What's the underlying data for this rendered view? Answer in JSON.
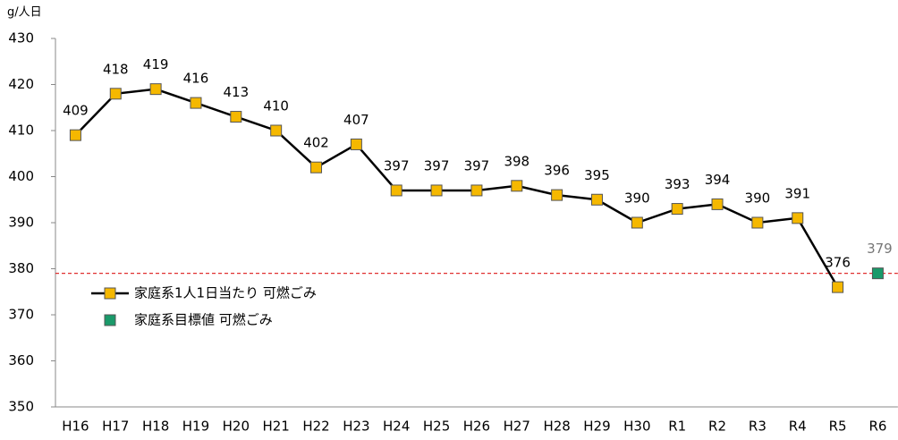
{
  "chart_data": {
    "type": "line",
    "y_label": "g/人日",
    "categories": [
      "H16",
      "H17",
      "H18",
      "H19",
      "H20",
      "H21",
      "H22",
      "H23",
      "H24",
      "H25",
      "H26",
      "H27",
      "H28",
      "H29",
      "H30",
      "R1",
      "R2",
      "R3",
      "R4",
      "R5",
      "R6"
    ],
    "series": [
      {
        "name": "家庭系1人1日当たり 可燃ごみ",
        "color": "#f5b800",
        "line_color": "#000000",
        "values": [
          409,
          418,
          419,
          416,
          413,
          410,
          402,
          407,
          397,
          397,
          397,
          398,
          396,
          395,
          390,
          393,
          394,
          390,
          391,
          376,
          null
        ]
      },
      {
        "name": "家庭系目標値 可燃ごみ",
        "color": "#1a9a6a",
        "line_color": null,
        "values": [
          null,
          null,
          null,
          null,
          null,
          null,
          null,
          null,
          null,
          null,
          null,
          null,
          null,
          null,
          null,
          null,
          null,
          null,
          null,
          null,
          379
        ]
      }
    ],
    "reference_line": {
      "value": 379,
      "color": "#e03030"
    },
    "ylim": [
      350,
      430
    ],
    "yticks": [
      350,
      360,
      370,
      380,
      390,
      400,
      410,
      420,
      430
    ],
    "grid": false
  }
}
